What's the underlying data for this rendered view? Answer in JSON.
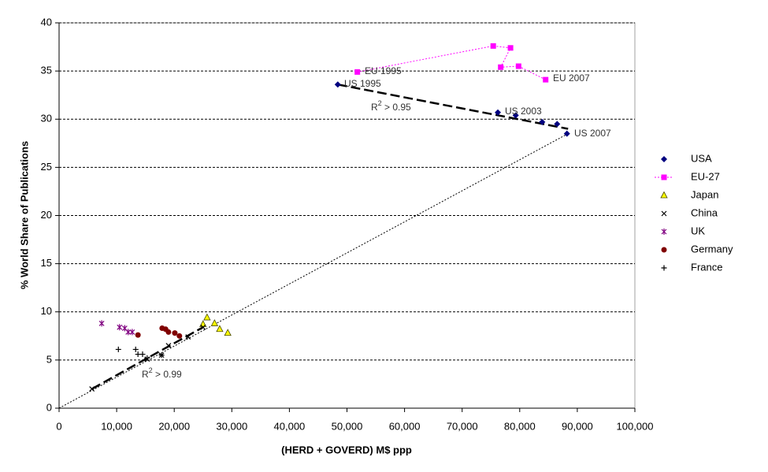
{
  "chart_data": {
    "type": "scatter",
    "x_label": "(HERD + GOVERD) M$ ppp",
    "y_label": "% World Share of Publications",
    "xlim": [
      0,
      100000
    ],
    "ylim": [
      0,
      40
    ],
    "xticks": [
      0,
      {
        "value": 10000,
        "label": "10,000"
      },
      {
        "value": 20000,
        "label": "20,000"
      },
      {
        "value": 30000,
        "label": "30,000"
      },
      {
        "value": 40000,
        "label": "40,000"
      },
      {
        "value": 50000,
        "label": "50,000"
      },
      {
        "value": 60000,
        "label": "60,000"
      },
      {
        "value": 70000,
        "label": "70,000"
      },
      {
        "value": 80000,
        "label": "80,000"
      },
      {
        "value": 90000,
        "label": "90,000"
      },
      {
        "value": 100000,
        "label": "100,000"
      }
    ],
    "yticks": [
      0,
      5,
      10,
      15,
      20,
      25,
      30,
      35,
      40
    ],
    "grid": true,
    "legend": "right",
    "series": [
      {
        "name": "USA",
        "color": "#000080",
        "marker": "diamond",
        "line": "none",
        "x": [
          48400,
          76200,
          79300,
          83900,
          86500,
          88200
        ],
        "y": [
          33.6,
          30.7,
          30.4,
          29.7,
          29.5,
          28.5
        ]
      },
      {
        "name": "EU-27",
        "color": "#ff00ff",
        "marker": "square",
        "line": "dotted",
        "x": [
          51800,
          75400,
          78400,
          76700,
          79800,
          84500
        ],
        "y": [
          34.9,
          37.6,
          37.4,
          35.4,
          35.5,
          34.1
        ]
      },
      {
        "name": "Japan",
        "color": "#ffff00",
        "marker": "triangle",
        "line": "none",
        "x": [
          25700,
          25000,
          27000,
          27900,
          29300
        ],
        "y": [
          9.4,
          8.7,
          8.8,
          8.2,
          7.8
        ]
      },
      {
        "name": "China",
        "color": "#000000",
        "marker": "x",
        "line": "none",
        "x": [
          5700,
          15300,
          17800,
          19000,
          22400,
          25000
        ],
        "y": [
          2.0,
          5.1,
          5.5,
          6.5,
          7.4,
          8.4
        ]
      },
      {
        "name": "UK",
        "color": "#800080",
        "marker": "asterisk",
        "line": "none",
        "x": [
          7400,
          10500,
          11400,
          12000,
          12700
        ],
        "y": [
          8.8,
          8.4,
          8.3,
          7.9,
          7.9
        ]
      },
      {
        "name": "Germany",
        "color": "#800000",
        "marker": "circle",
        "line": "none",
        "x": [
          13700,
          17900,
          18500,
          19000,
          20100,
          20900
        ],
        "y": [
          7.6,
          8.3,
          8.2,
          7.9,
          7.8,
          7.5
        ]
      },
      {
        "name": "France",
        "color": "#000000",
        "marker": "plus",
        "line": "none",
        "x": [
          10300,
          13300,
          13700,
          14500,
          15300,
          17800
        ],
        "y": [
          6.1,
          6.1,
          5.6,
          5.6,
          5.2,
          5.5
        ]
      }
    ],
    "trendlines": [
      {
        "style": "dashed",
        "x": [
          48400,
          88400
        ],
        "y": [
          33.6,
          29.0
        ]
      },
      {
        "style": "dashed",
        "x": [
          5700,
          25000
        ],
        "y": [
          2.0,
          8.4
        ]
      },
      {
        "style": "dotted",
        "x": [
          0,
          88400
        ],
        "y": [
          0,
          28.5
        ]
      }
    ],
    "annotations": [
      {
        "text": "EU 1995"
      },
      {
        "text": "US 1995"
      },
      {
        "text": "US 2003"
      },
      {
        "text": "EU 2007"
      },
      {
        "text": "US 2007"
      },
      {
        "text": "R",
        "sup": "2",
        "rest": " > 0.95"
      },
      {
        "text": "R",
        "sup": "2",
        "rest": " > 0.99"
      }
    ]
  }
}
